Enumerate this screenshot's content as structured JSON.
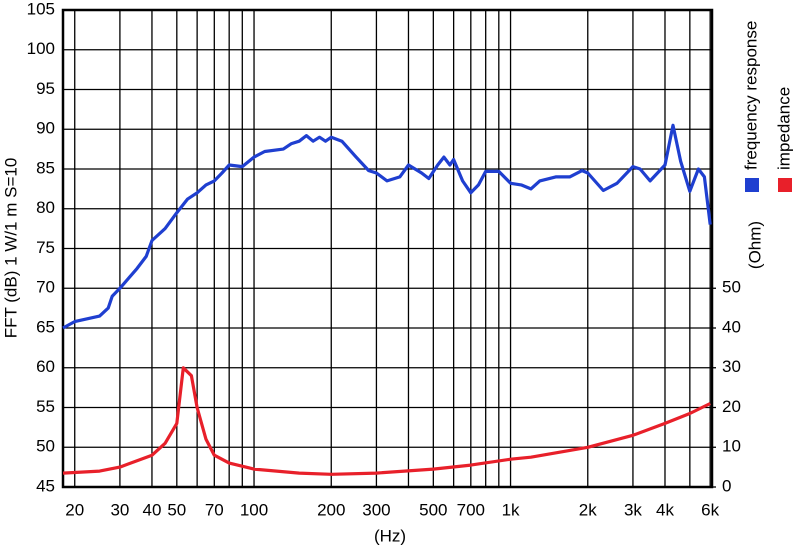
{
  "chart_data": {
    "type": "line",
    "xlabel": "(Hz)",
    "ylabel": "FFT (dB) 1 W/1 m  S=10",
    "y2label": "(Ohm)",
    "xscale": "log",
    "xlim": [
      18,
      6100
    ],
    "xticks": [
      20,
      30,
      40,
      50,
      70,
      100,
      200,
      300,
      500,
      700,
      {
        "value": 1000,
        "label": "1k"
      },
      {
        "value": 2000,
        "label": "2k"
      },
      {
        "value": 3000,
        "label": "3k"
      },
      {
        "value": 4000,
        "label": "4k"
      },
      {
        "value": 6000,
        "label": "6k"
      }
    ],
    "xminor": [
      60,
      80,
      90,
      400,
      600,
      800,
      900,
      5000
    ],
    "ylim": [
      45,
      105
    ],
    "yticks": [
      45,
      50,
      55,
      60,
      65,
      70,
      75,
      80,
      85,
      90,
      95,
      100,
      105
    ],
    "y2lim": [
      0,
      120
    ],
    "y2ticks": [
      0,
      10,
      20,
      30,
      40,
      50
    ],
    "grid": true,
    "series": [
      {
        "name": "frequency response",
        "color": "#1f3fd0",
        "x": [
          18,
          20,
          25,
          27,
          28,
          30,
          35,
          38,
          40,
          45,
          50,
          55,
          60,
          65,
          70,
          75,
          80,
          90,
          100,
          110,
          130,
          140,
          150,
          160,
          170,
          180,
          190,
          200,
          220,
          250,
          280,
          300,
          330,
          370,
          400,
          450,
          480,
          520,
          550,
          580,
          600,
          650,
          700,
          750,
          800,
          900,
          1000,
          1100,
          1200,
          1300,
          1500,
          1700,
          1900,
          2000,
          2300,
          2600,
          3000,
          3200,
          3500,
          4000,
          4300,
          4600,
          5000,
          5400,
          5700,
          6000
        ],
        "values": [
          65,
          65.8,
          66.5,
          67.5,
          69,
          70,
          72.5,
          74,
          76,
          77.5,
          79.5,
          81.2,
          82,
          83,
          83.5,
          84.5,
          85.5,
          85.3,
          86.5,
          87.2,
          87.5,
          88.2,
          88.5,
          89.2,
          88.5,
          89,
          88.5,
          89,
          88.5,
          86.5,
          84.8,
          84.5,
          83.5,
          84,
          85.5,
          84.5,
          83.8,
          85.5,
          86.5,
          85.5,
          86.2,
          83.5,
          82,
          83,
          84.7,
          84.7,
          83.2,
          83,
          82.5,
          83.5,
          84,
          84,
          84.8,
          84.5,
          82.3,
          83.2,
          85.3,
          85,
          83.5,
          85.5,
          90.5,
          86,
          82.2,
          85,
          84,
          78
        ]
      },
      {
        "name": "impedance",
        "color": "#e8202a",
        "axis": "y2",
        "x": [
          18,
          25,
          30,
          40,
          45,
          50,
          53,
          57,
          60,
          65,
          70,
          80,
          100,
          150,
          200,
          300,
          500,
          700,
          1000,
          1200,
          2000,
          3000,
          4000,
          5000,
          6000
        ],
        "values": [
          3.5,
          4,
          5,
          8,
          11,
          16,
          30,
          28,
          20,
          12,
          8,
          6,
          4.5,
          3.5,
          3.2,
          3.5,
          4.5,
          5.5,
          7,
          7.5,
          10,
          13,
          16,
          18.5,
          21
        ]
      }
    ]
  }
}
